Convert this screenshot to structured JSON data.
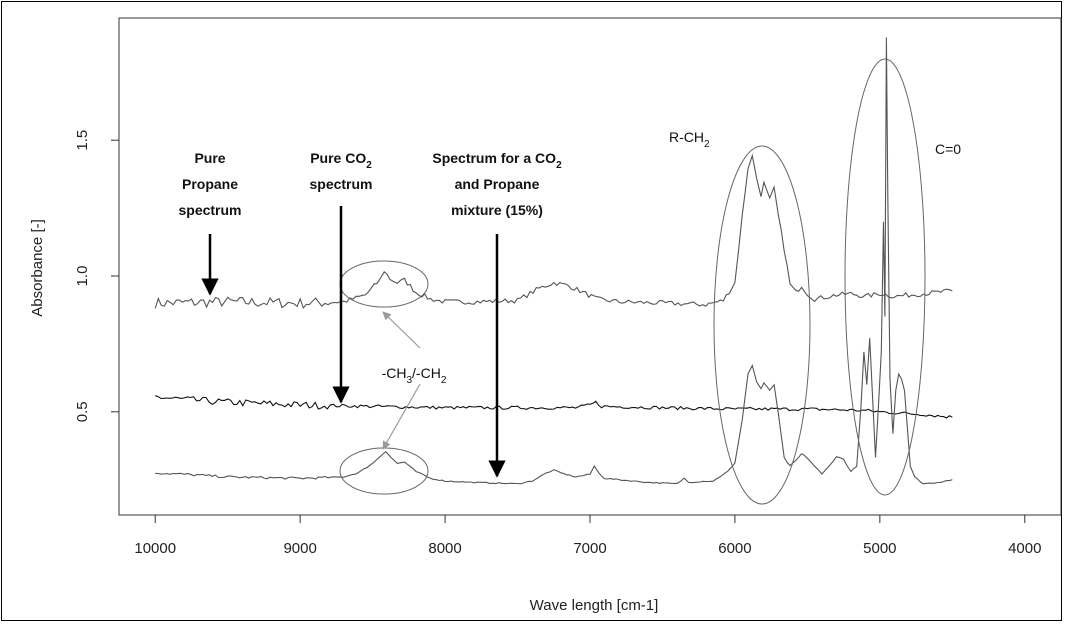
{
  "chart_data": {
    "type": "line",
    "title": "",
    "xlabel": "Wave length [cm-1]",
    "ylabel": "Absorbance [-]",
    "xlim": [
      10250,
      3750
    ],
    "ylim": [
      0.12,
      1.95
    ],
    "x_reversed": true,
    "x_ticks": [
      10000,
      9000,
      8000,
      7000,
      6000,
      5000,
      4000
    ],
    "x_tick_labels": [
      "10000",
      "9000",
      "8000",
      "7000",
      "6000",
      "5000",
      "4000"
    ],
    "y_ticks": [
      0.5,
      1.0,
      1.5
    ],
    "y_tick_labels": [
      "0.5",
      "1.0",
      "1.5"
    ],
    "grid": false,
    "series": [
      {
        "id": "propane",
        "color": "#555555",
        "noise": 0.018,
        "points": [
          [
            10000,
            0.9
          ],
          [
            9500,
            0.905
          ],
          [
            9000,
            0.9
          ],
          [
            8700,
            0.905
          ],
          [
            8550,
            0.93
          ],
          [
            8450,
            0.985
          ],
          [
            8420,
            1.02
          ],
          [
            8380,
            0.99
          ],
          [
            8330,
            0.975
          ],
          [
            8280,
            0.985
          ],
          [
            8200,
            0.94
          ],
          [
            8100,
            0.915
          ],
          [
            8000,
            0.905
          ],
          [
            7800,
            0.905
          ],
          [
            7500,
            0.91
          ],
          [
            7350,
            0.955
          ],
          [
            7250,
            0.975
          ],
          [
            7150,
            0.965
          ],
          [
            7050,
            0.94
          ],
          [
            6950,
            0.915
          ],
          [
            6800,
            0.905
          ],
          [
            6500,
            0.9
          ],
          [
            6200,
            0.895
          ],
          [
            6080,
            0.91
          ],
          [
            6000,
            0.975
          ],
          [
            5950,
            1.22
          ],
          [
            5910,
            1.4
          ],
          [
            5880,
            1.44
          ],
          [
            5850,
            1.36
          ],
          [
            5820,
            1.3
          ],
          [
            5800,
            1.34
          ],
          [
            5760,
            1.28
          ],
          [
            5730,
            1.32
          ],
          [
            5700,
            1.22
          ],
          [
            5660,
            1.1
          ],
          [
            5620,
            0.97
          ],
          [
            5580,
            0.94
          ],
          [
            5540,
            0.965
          ],
          [
            5500,
            0.935
          ],
          [
            5450,
            0.915
          ],
          [
            5300,
            0.93
          ],
          [
            5200,
            0.935
          ],
          [
            5100,
            0.925
          ],
          [
            5000,
            0.935
          ],
          [
            4900,
            0.925
          ],
          [
            4800,
            0.93
          ],
          [
            4700,
            0.935
          ],
          [
            4600,
            0.94
          ],
          [
            4500,
            0.945
          ]
        ]
      },
      {
        "id": "co2",
        "color": "#111111",
        "noise": 0.012,
        "points": [
          [
            10000,
            0.555
          ],
          [
            9800,
            0.545
          ],
          [
            9500,
            0.535
          ],
          [
            9000,
            0.525
          ],
          [
            8500,
            0.52
          ],
          [
            8000,
            0.515
          ],
          [
            7500,
            0.515
          ],
          [
            7100,
            0.515
          ],
          [
            7000,
            0.525
          ],
          [
            6960,
            0.535
          ],
          [
            6920,
            0.52
          ],
          [
            6500,
            0.515
          ],
          [
            6000,
            0.51
          ],
          [
            5500,
            0.51
          ],
          [
            5100,
            0.505
          ],
          [
            5000,
            0.5
          ],
          [
            4700,
            0.49
          ],
          [
            4500,
            0.48
          ]
        ]
      },
      {
        "id": "mixture",
        "color": "#555555",
        "noise": 0.004,
        "points": [
          [
            10000,
            0.275
          ],
          [
            9800,
            0.27
          ],
          [
            9500,
            0.26
          ],
          [
            9000,
            0.255
          ],
          [
            8700,
            0.26
          ],
          [
            8600,
            0.275
          ],
          [
            8500,
            0.31
          ],
          [
            8450,
            0.335
          ],
          [
            8410,
            0.355
          ],
          [
            8370,
            0.33
          ],
          [
            8330,
            0.31
          ],
          [
            8280,
            0.315
          ],
          [
            8200,
            0.28
          ],
          [
            8100,
            0.255
          ],
          [
            8000,
            0.245
          ],
          [
            7800,
            0.24
          ],
          [
            7500,
            0.235
          ],
          [
            7400,
            0.245
          ],
          [
            7300,
            0.275
          ],
          [
            7250,
            0.285
          ],
          [
            7200,
            0.275
          ],
          [
            7100,
            0.26
          ],
          [
            7000,
            0.27
          ],
          [
            6970,
            0.3
          ],
          [
            6940,
            0.275
          ],
          [
            6900,
            0.255
          ],
          [
            6800,
            0.25
          ],
          [
            6600,
            0.24
          ],
          [
            6400,
            0.235
          ],
          [
            6350,
            0.255
          ],
          [
            6320,
            0.24
          ],
          [
            6200,
            0.245
          ],
          [
            6150,
            0.245
          ],
          [
            6050,
            0.28
          ],
          [
            6000,
            0.31
          ],
          [
            5950,
            0.47
          ],
          [
            5910,
            0.64
          ],
          [
            5880,
            0.67
          ],
          [
            5850,
            0.61
          ],
          [
            5820,
            0.585
          ],
          [
            5800,
            0.605
          ],
          [
            5760,
            0.58
          ],
          [
            5730,
            0.6
          ],
          [
            5700,
            0.49
          ],
          [
            5660,
            0.33
          ],
          [
            5620,
            0.3
          ],
          [
            5580,
            0.32
          ],
          [
            5540,
            0.345
          ],
          [
            5500,
            0.33
          ],
          [
            5450,
            0.3
          ],
          [
            5400,
            0.27
          ],
          [
            5350,
            0.3
          ],
          [
            5300,
            0.335
          ],
          [
            5250,
            0.325
          ],
          [
            5200,
            0.28
          ],
          [
            5160,
            0.3
          ],
          [
            5130,
            0.52
          ],
          [
            5110,
            0.72
          ],
          [
            5090,
            0.6
          ],
          [
            5070,
            0.77
          ],
          [
            5050,
            0.55
          ],
          [
            5030,
            0.33
          ],
          [
            5010,
            0.52
          ],
          [
            4990,
            0.72
          ],
          [
            4975,
            1.2
          ],
          [
            4965,
            0.85
          ],
          [
            4955,
            1.88
          ],
          [
            4945,
            1.3
          ],
          [
            4930,
            0.62
          ],
          [
            4910,
            0.42
          ],
          [
            4890,
            0.58
          ],
          [
            4870,
            0.64
          ],
          [
            4850,
            0.62
          ],
          [
            4830,
            0.58
          ],
          [
            4810,
            0.44
          ],
          [
            4790,
            0.3
          ],
          [
            4760,
            0.26
          ],
          [
            4700,
            0.235
          ],
          [
            4600,
            0.24
          ],
          [
            4500,
            0.25
          ]
        ]
      }
    ],
    "annotations": {
      "pure_propane": [
        "Pure",
        "Propane",
        "spectrum"
      ],
      "pure_co2_line1": "Pure CO",
      "pure_co2_sub": "2",
      "pure_co2_line2": "spectrum",
      "mixture_line1": "Spectrum for a CO",
      "mixture_sub": "2",
      "mixture_line2": "and Propane",
      "mixture_line3": "mixture (15%)",
      "rch2_main": "R-CH",
      "rch2_sub": "2",
      "c0": "C=0",
      "ch3_a": "-CH",
      "ch3_a_sub": "3",
      "ch3_b": "/-CH",
      "ch3_b_sub": "2"
    }
  }
}
